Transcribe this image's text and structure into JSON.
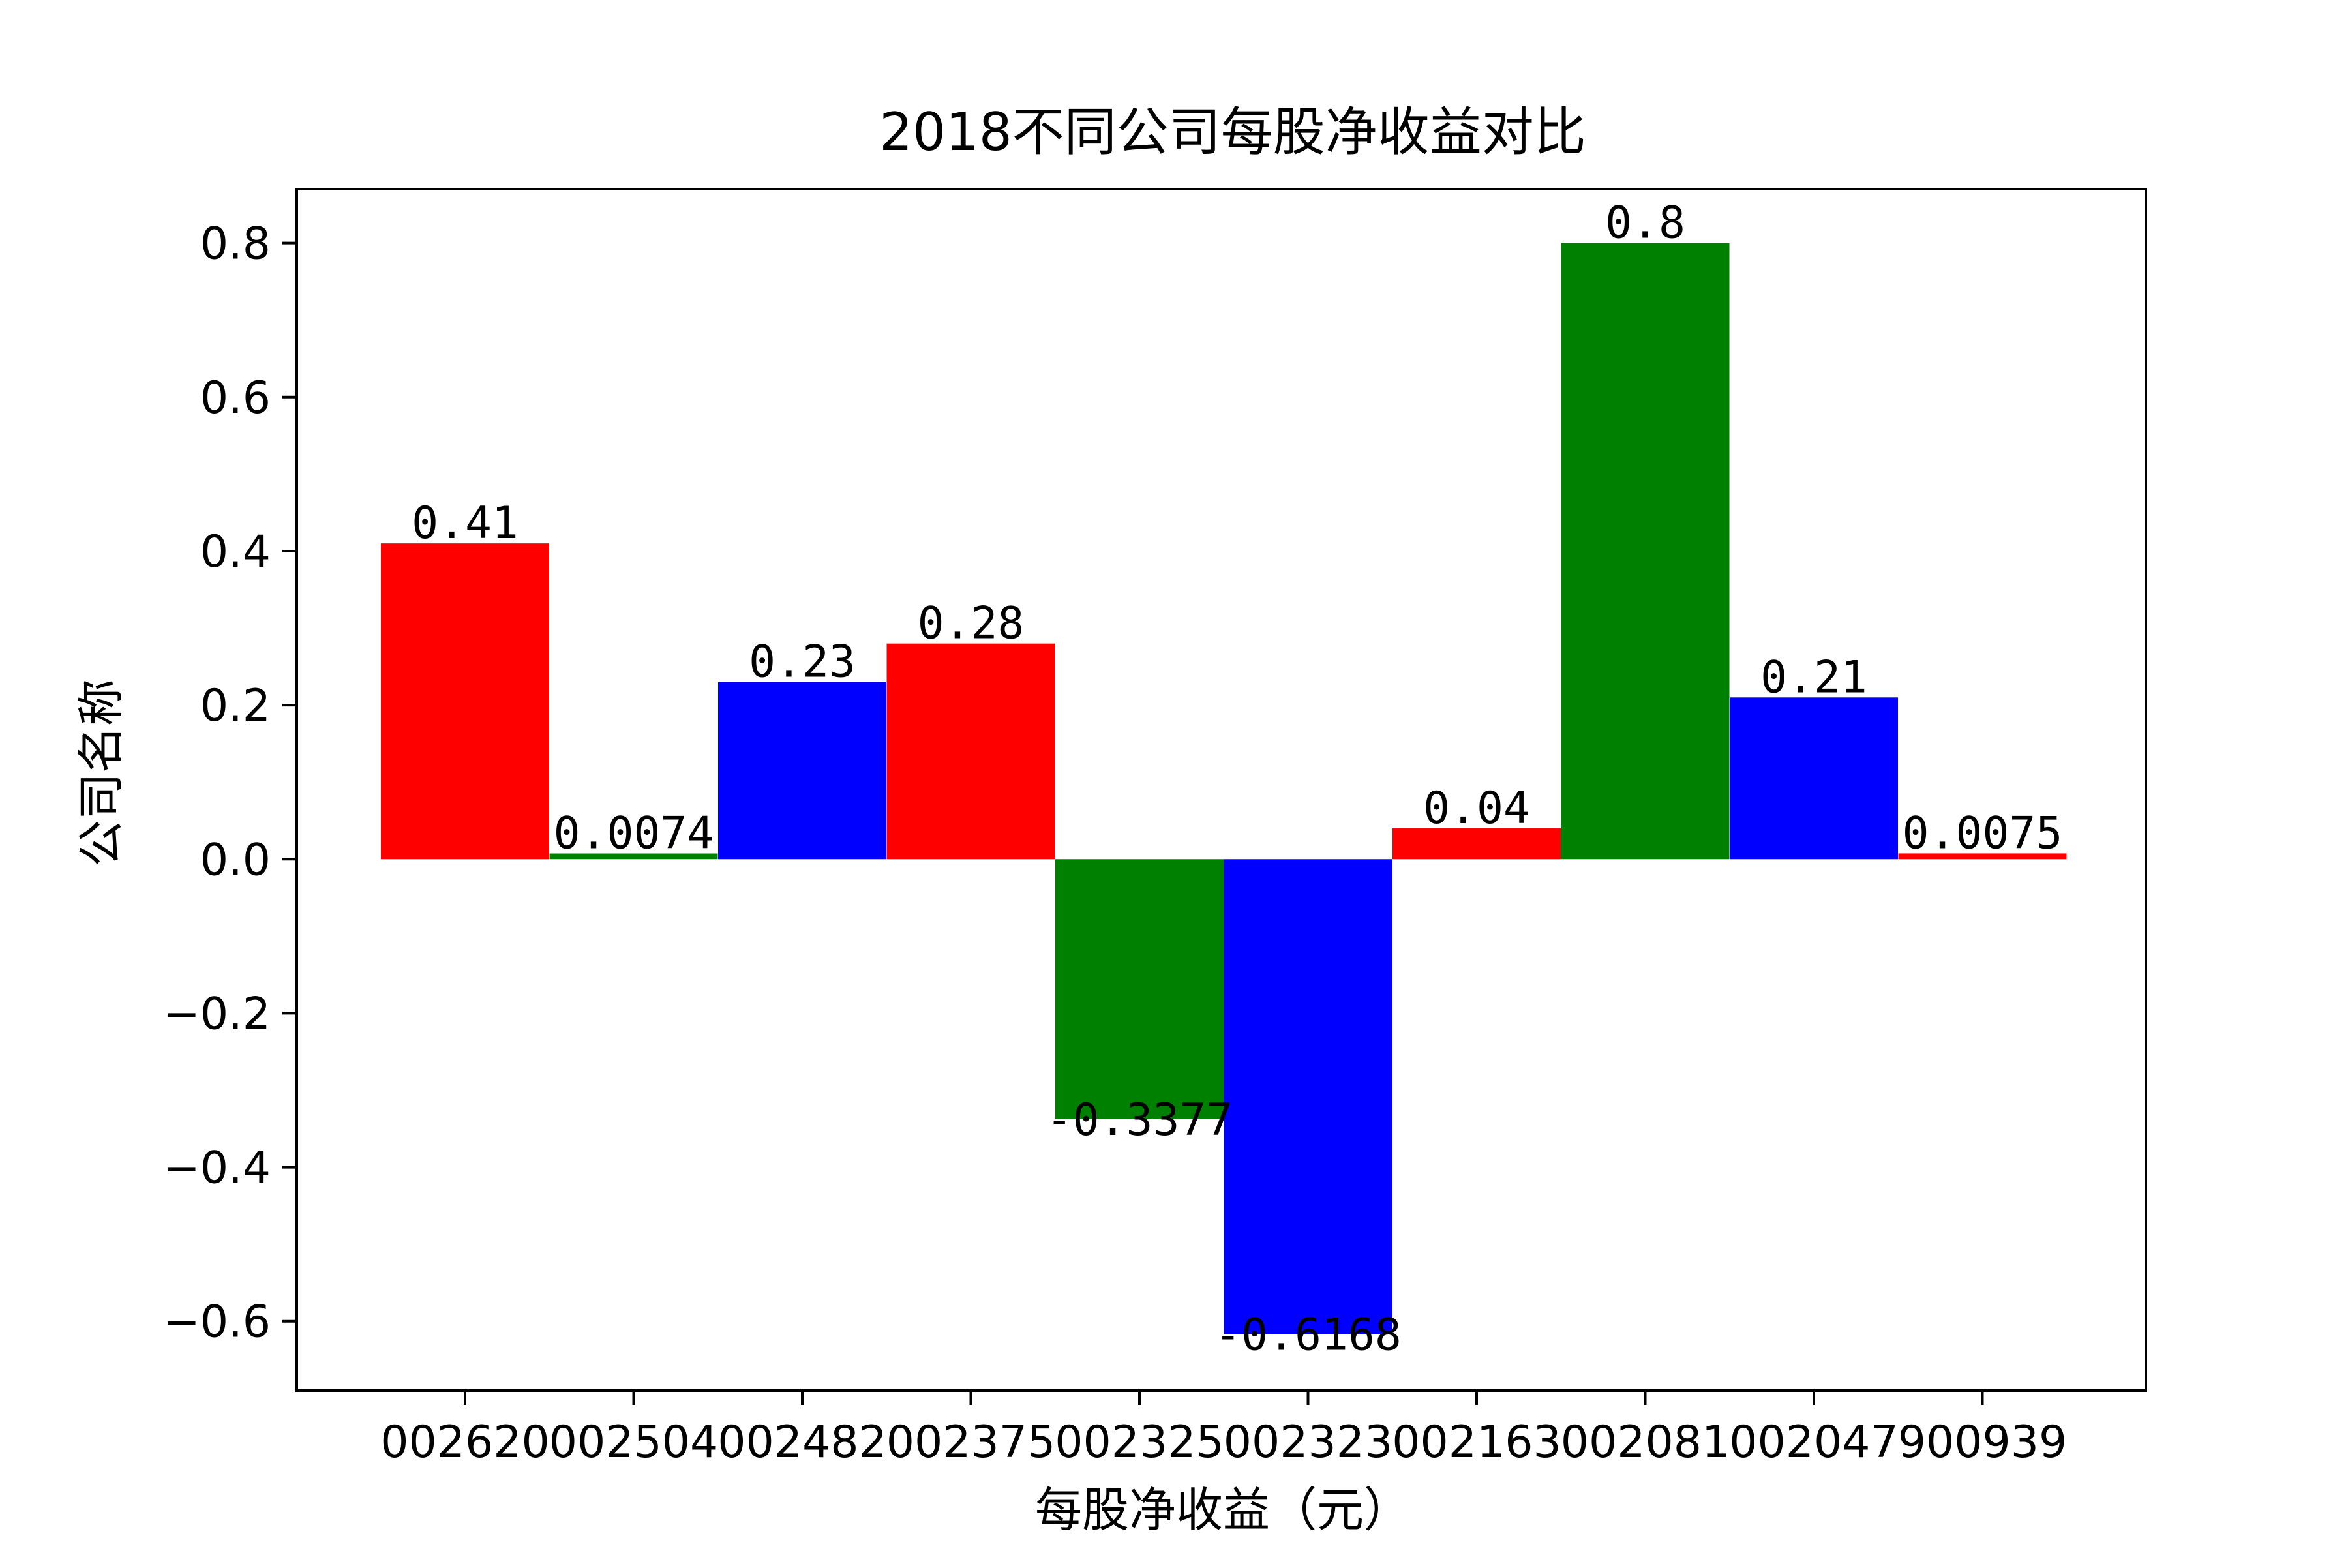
{
  "chart_data": {
    "type": "bar",
    "title": "2018不同公司每股净收益对比",
    "xlabel": "每股净收益（元）",
    "ylabel": "公司名称",
    "categories": [
      "002620",
      "002504",
      "002482",
      "002375",
      "002325",
      "002323",
      "002163",
      "002081",
      "002047",
      "900939"
    ],
    "values": [
      0.41,
      0.0074,
      0.23,
      0.28,
      -0.3377,
      -0.6168,
      0.04,
      0.8,
      0.21,
      0.0075
    ],
    "value_labels": [
      "0.41",
      "0.0074",
      "0.23",
      "0.28",
      "-0.3377",
      "-0.6168",
      "0.04",
      "0.8",
      "0.21",
      "0.0075"
    ],
    "bar_colors": [
      "#ff0000",
      "#008000",
      "#0000ff",
      "#ff0000",
      "#008000",
      "#0000ff",
      "#ff0000",
      "#008000",
      "#0000ff",
      "#ff0000"
    ],
    "yticks": [
      -0.6,
      -0.4,
      -0.2,
      0.0,
      0.2,
      0.4,
      0.6,
      0.8
    ],
    "ytick_labels": [
      "−0.6",
      "−0.4",
      "−0.2",
      "0.0",
      "0.2",
      "0.4",
      "0.6",
      "0.8"
    ],
    "ylim": [
      -0.69,
      0.87
    ],
    "grid": false,
    "legend": "none"
  }
}
